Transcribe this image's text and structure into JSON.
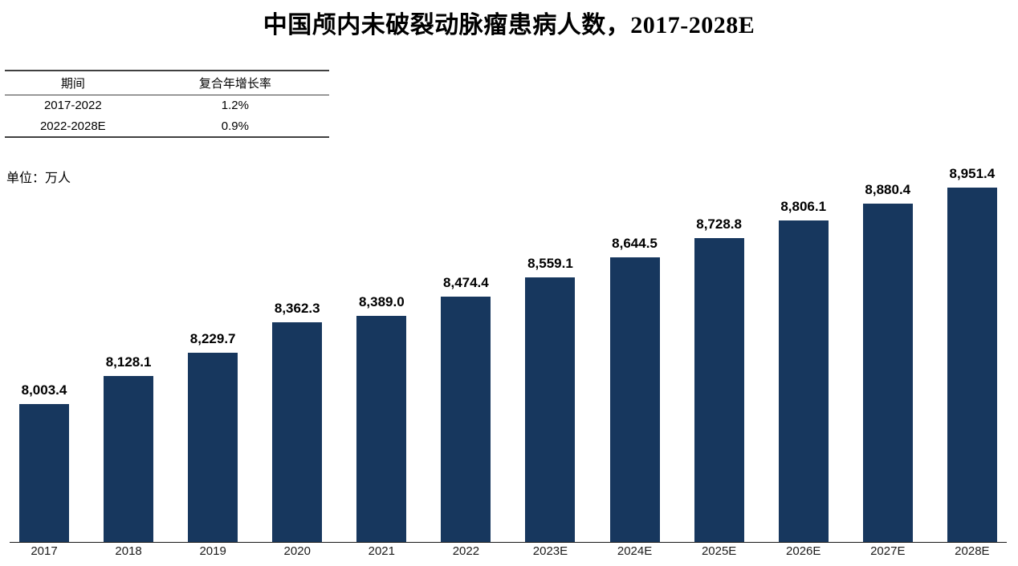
{
  "title": "中国颅内未破裂动脉瘤患病人数，2017-2028E",
  "unit_label": "单位：万人",
  "cagr_table": {
    "headers": [
      "期间",
      "复合年增长率"
    ],
    "rows": [
      {
        "period": "2017-2022",
        "cagr": "1.2%"
      },
      {
        "period": "2022-2028E",
        "cagr": "0.9%"
      }
    ]
  },
  "chart_data": {
    "type": "bar",
    "title": "中国颅内未破裂动脉瘤患病人数，2017-2028E",
    "unit": "万人",
    "categories": [
      "2017",
      "2018",
      "2019",
      "2020",
      "2021",
      "2022",
      "2023E",
      "2024E",
      "2025E",
      "2026E",
      "2027E",
      "2028E"
    ],
    "values": [
      8003.4,
      8128.1,
      8229.7,
      8362.3,
      8389.0,
      8474.4,
      8559.1,
      8644.5,
      8728.8,
      8806.1,
      8880.4,
      8951.4
    ],
    "value_labels": [
      "8,003.4",
      "8,128.1",
      "8,229.7",
      "8,362.3",
      "8,389.0",
      "8,474.4",
      "8,559.1",
      "8,644.5",
      "8,728.8",
      "8,806.1",
      "8,880.4",
      "8,951.4"
    ],
    "bar_color": "#17375e",
    "ylim": [
      7400,
      9000
    ],
    "grid": false,
    "legend": false,
    "data_labels": true,
    "xlabel": "",
    "ylabel": ""
  }
}
